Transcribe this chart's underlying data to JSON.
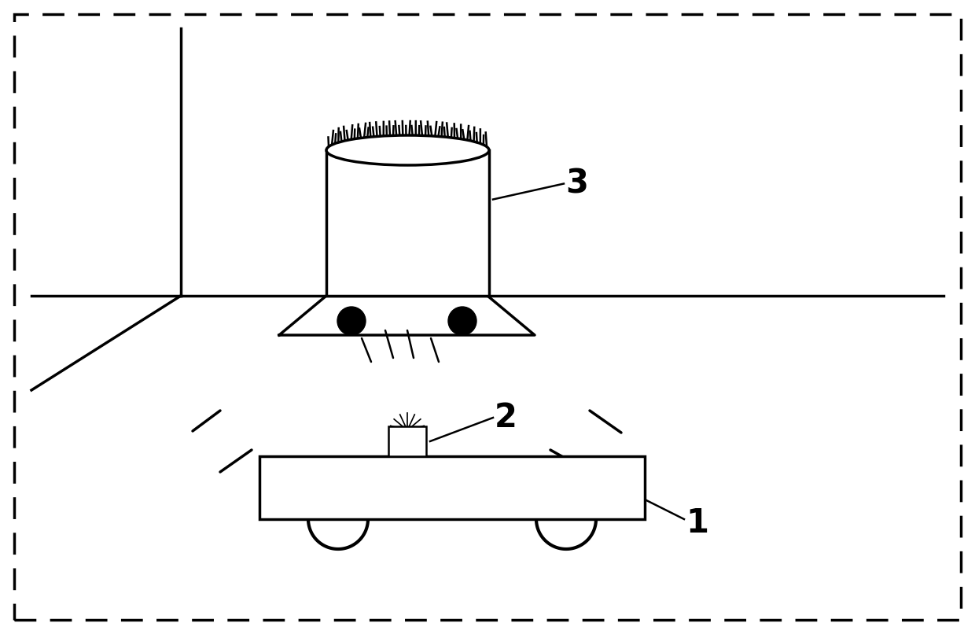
{
  "bg_color": "#ffffff",
  "line_color": "#000000",
  "fig_width": 12.4,
  "fig_height": 8.06,
  "dpi": 100,
  "label1": "1",
  "label2": "2",
  "label3": "3"
}
